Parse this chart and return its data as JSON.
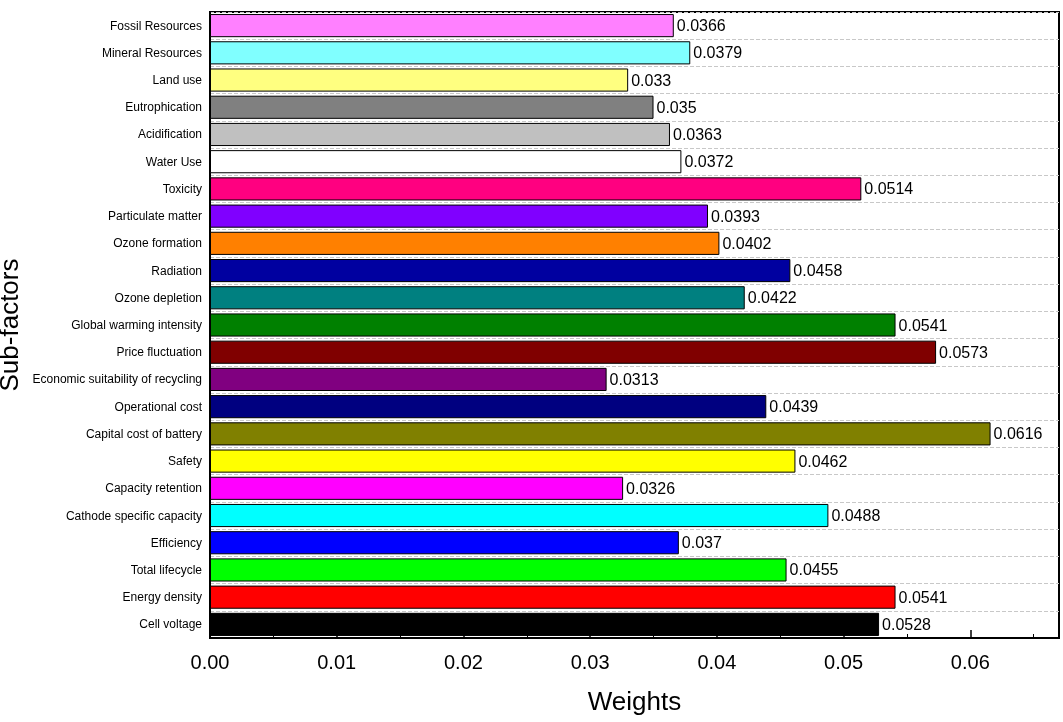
{
  "chart_data": {
    "type": "bar",
    "orientation": "horizontal",
    "xlabel": "Weights",
    "ylabel": "Sub-factors",
    "categories": [
      "Fossil Resources",
      "Mineral Resources",
      "Land use",
      "Eutrophication",
      "Acidification",
      "Water Use",
      "Toxicity",
      "Particulate matter",
      "Ozone formation",
      "Radiation",
      "Ozone depletion",
      "Global warming intensity",
      "Price fluctuation",
      "Economic suitability of recycling",
      "Operational cost",
      "Capital cost of battery",
      "Safety",
      "Capacity retention",
      "Cathode specific capacity",
      "Efficiency",
      "Total lifecycle",
      "Energy density",
      "Cell voltage"
    ],
    "values": [
      0.0366,
      0.0379,
      0.033,
      0.035,
      0.0363,
      0.0372,
      0.0514,
      0.0393,
      0.0402,
      0.0458,
      0.0422,
      0.0541,
      0.0573,
      0.0313,
      0.0439,
      0.0616,
      0.0462,
      0.0326,
      0.0488,
      0.037,
      0.0455,
      0.0541,
      0.0528
    ],
    "colors": [
      "#ff80ff",
      "#80ffff",
      "#ffff80",
      "#808080",
      "#c0c0c0",
      "#ffffff",
      "#ff0080",
      "#8000ff",
      "#ff8000",
      "#0000a0",
      "#008080",
      "#008000",
      "#800000",
      "#800080",
      "#000080",
      "#808000",
      "#ffff00",
      "#ff00ff",
      "#00ffff",
      "#0000ff",
      "#00ff00",
      "#ff0000",
      "#000000"
    ],
    "xlim": [
      0,
      0.067
    ],
    "xticks": [
      {
        "value": 0,
        "label": "0.00"
      },
      {
        "value": 0.01,
        "label": "0.01"
      },
      {
        "value": 0.02,
        "label": "0.02"
      },
      {
        "value": 0.03,
        "label": "0.03"
      },
      {
        "value": 0.04,
        "label": "0.04"
      },
      {
        "value": 0.05,
        "label": "0.05"
      },
      {
        "value": 0.06,
        "label": "0.06"
      }
    ],
    "grid": "y",
    "data_labels": true
  }
}
